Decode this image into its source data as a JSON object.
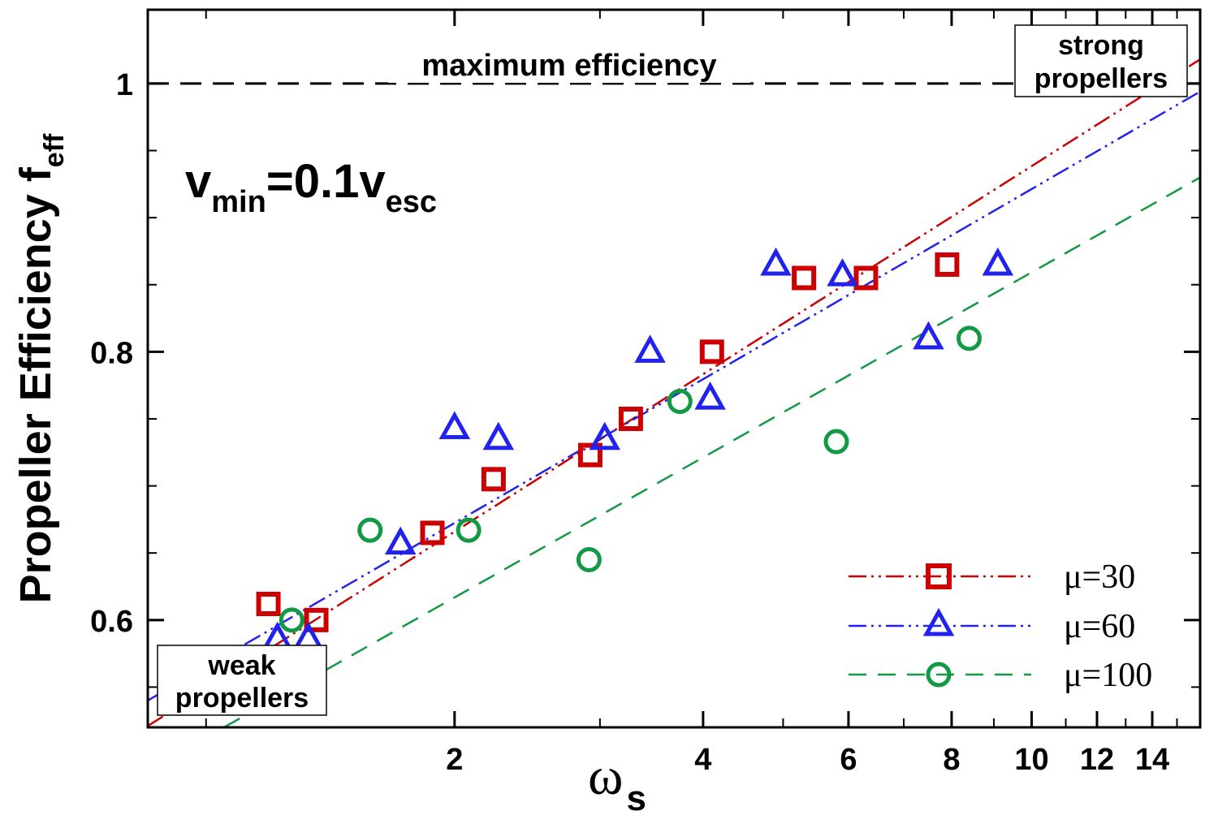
{
  "chart_data": {
    "type": "scatter",
    "title": "",
    "xlabel": "ω",
    "xlabel_sub": "s",
    "ylabel": "Propeller Efficiency  f",
    "ylabel_sub": "eff",
    "xscale": "log",
    "xlim": [
      0.85,
      16
    ],
    "ylim": [
      0.52,
      1.055
    ],
    "grid": false,
    "x_ticks": [
      2,
      4,
      6,
      8,
      10,
      12,
      14
    ],
    "x_tick_labels": [
      "2",
      "4",
      "6",
      "8",
      "10",
      "12",
      "14"
    ],
    "x_minor_ticks": [
      1,
      3,
      5,
      7,
      9,
      11,
      13,
      15
    ],
    "y_ticks": [
      0.6,
      0.8,
      1
    ],
    "y_tick_labels": [
      "0.6",
      "0.8",
      "1"
    ],
    "y_minor_ticks": [
      0.55,
      0.65,
      0.7,
      0.75,
      0.85,
      0.9,
      0.95
    ],
    "reference_line": {
      "y": 1.0,
      "label": "maximum efficiency",
      "color": "#000000"
    },
    "annotation_condition": {
      "v": "v",
      "min": "min",
      "eq": "=0.1v",
      "esc": "esc"
    },
    "annotations": {
      "strong": [
        "strong",
        "propellers"
      ],
      "weak": [
        "weak",
        "propellers"
      ]
    },
    "legend_position": "bottom-right",
    "series": [
      {
        "name": "μ=30",
        "marker": "square",
        "color": "#cc0000",
        "line_style": "dash-dot-dot",
        "fit": {
          "x": [
            0.85,
            16
          ],
          "y": [
            0.521,
            1.018
          ]
        },
        "points": [
          {
            "x": 1.19,
            "y": 0.612
          },
          {
            "x": 1.36,
            "y": 0.6
          },
          {
            "x": 1.88,
            "y": 0.665
          },
          {
            "x": 2.23,
            "y": 0.705
          },
          {
            "x": 2.92,
            "y": 0.723
          },
          {
            "x": 3.27,
            "y": 0.75
          },
          {
            "x": 4.1,
            "y": 0.8
          },
          {
            "x": 5.3,
            "y": 0.855
          },
          {
            "x": 6.3,
            "y": 0.855
          },
          {
            "x": 7.9,
            "y": 0.865
          }
        ]
      },
      {
        "name": "μ=60",
        "marker": "triangle",
        "color": "#2222ee",
        "line_style": "dash-dot-dot",
        "fit": {
          "x": [
            0.85,
            16
          ],
          "y": [
            0.54,
            0.994
          ]
        },
        "points": [
          {
            "x": 1.22,
            "y": 0.586
          },
          {
            "x": 1.33,
            "y": 0.586
          },
          {
            "x": 1.72,
            "y": 0.657
          },
          {
            "x": 2.0,
            "y": 0.743
          },
          {
            "x": 2.26,
            "y": 0.735
          },
          {
            "x": 3.04,
            "y": 0.735
          },
          {
            "x": 3.45,
            "y": 0.8
          },
          {
            "x": 4.08,
            "y": 0.765
          },
          {
            "x": 4.9,
            "y": 0.865
          },
          {
            "x": 5.9,
            "y": 0.857
          },
          {
            "x": 7.5,
            "y": 0.81
          },
          {
            "x": 9.1,
            "y": 0.865
          }
        ]
      },
      {
        "name": "μ=100",
        "marker": "circle",
        "color": "#119944",
        "line_style": "dashed",
        "fit": {
          "x": [
            0.85,
            16
          ],
          "y": [
            0.488,
            0.93
          ]
        },
        "points": [
          {
            "x": 1.27,
            "y": 0.6
          },
          {
            "x": 1.58,
            "y": 0.667
          },
          {
            "x": 2.08,
            "y": 0.667
          },
          {
            "x": 2.91,
            "y": 0.645
          },
          {
            "x": 3.75,
            "y": 0.763
          },
          {
            "x": 5.8,
            "y": 0.733
          },
          {
            "x": 8.4,
            "y": 0.81
          }
        ]
      }
    ]
  }
}
